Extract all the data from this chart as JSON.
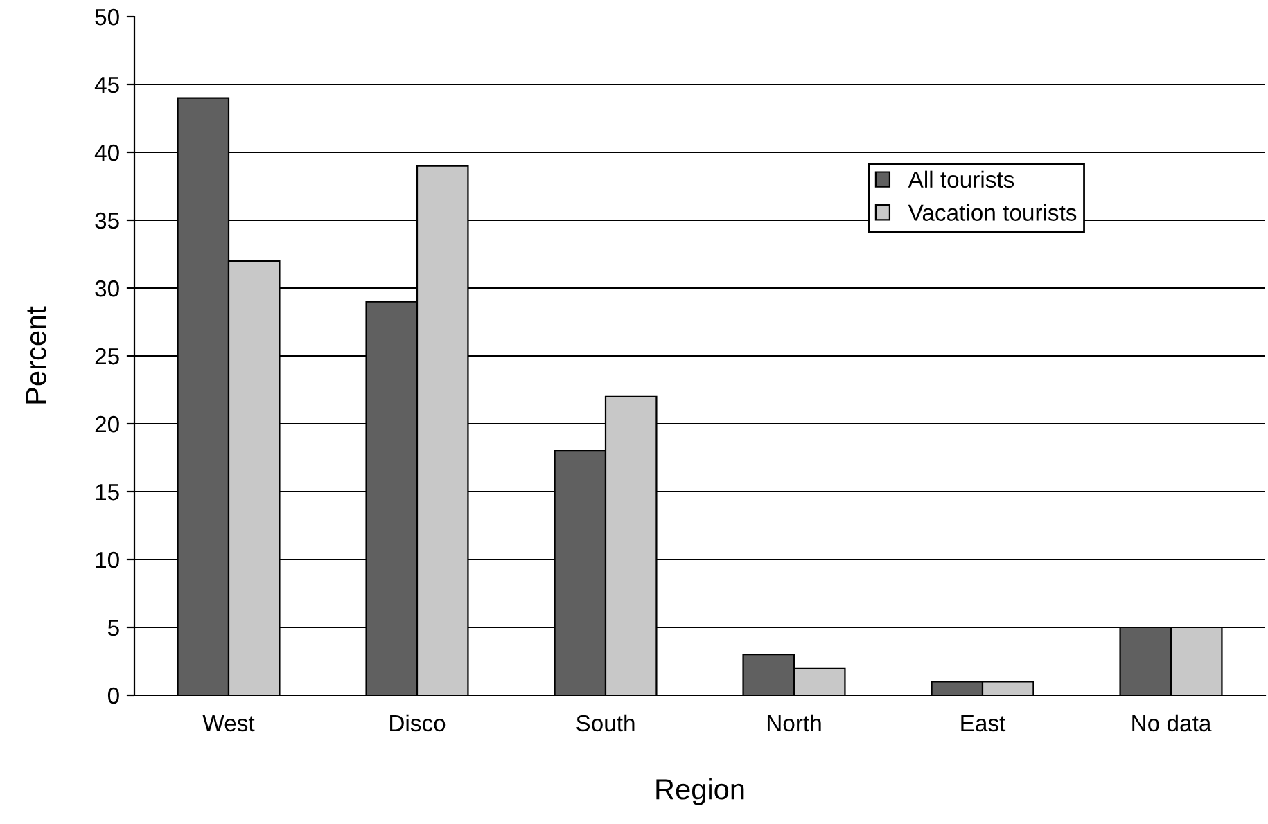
{
  "chart_data": {
    "type": "bar",
    "xlabel": "Region",
    "ylabel": "Percent",
    "categories": [
      "West",
      "Disco",
      "South",
      "North",
      "East",
      "No data"
    ],
    "series": [
      {
        "name": "All tourists",
        "color": "#606060",
        "values": [
          44,
          29,
          18,
          3,
          1,
          5
        ]
      },
      {
        "name": "Vacation tourists",
        "color": "#c8c8c8",
        "values": [
          32,
          39,
          22,
          2,
          1,
          5
        ]
      }
    ],
    "ylim": [
      0,
      50
    ],
    "yticks": [
      0,
      5,
      10,
      15,
      20,
      25,
      30,
      35,
      40,
      45,
      50
    ],
    "grid": "y",
    "legend": "top right"
  }
}
